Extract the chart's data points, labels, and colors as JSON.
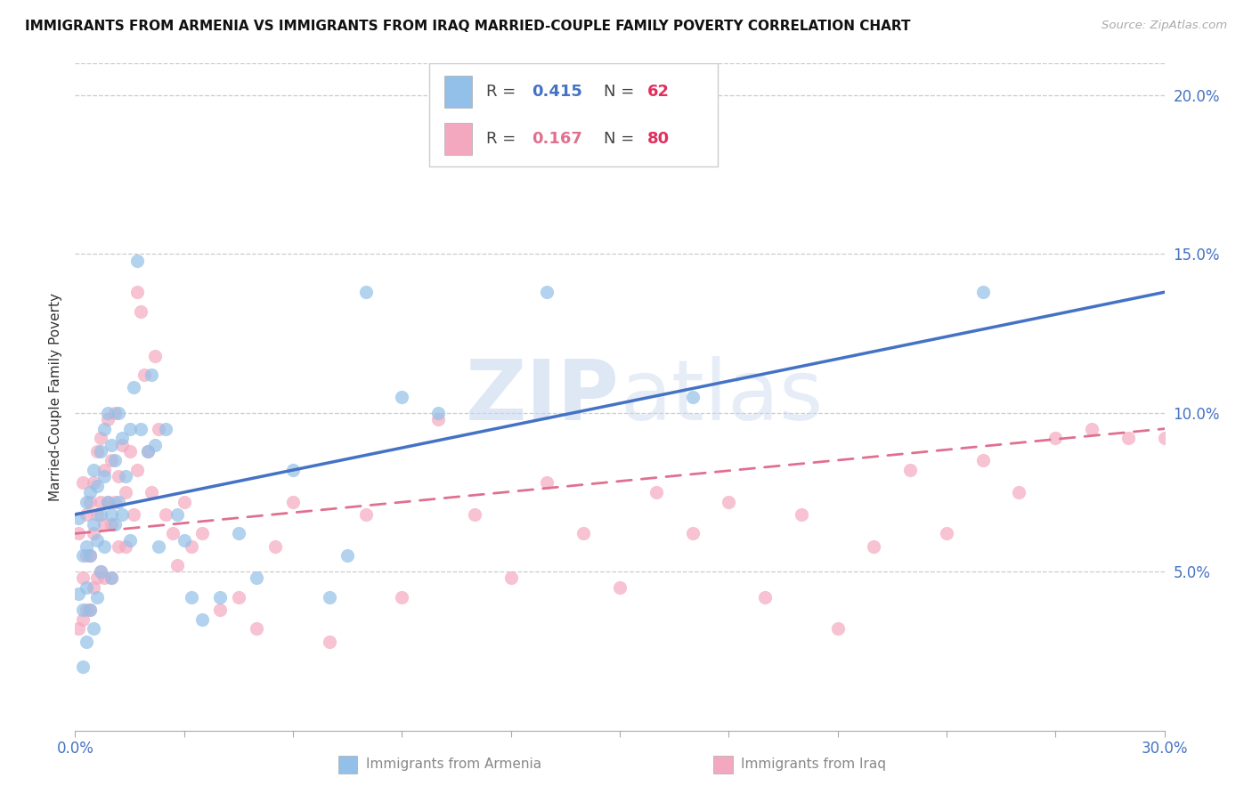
{
  "title": "IMMIGRANTS FROM ARMENIA VS IMMIGRANTS FROM IRAQ MARRIED-COUPLE FAMILY POVERTY CORRELATION CHART",
  "source": "Source: ZipAtlas.com",
  "ylabel": "Married-Couple Family Poverty",
  "xmin": 0.0,
  "xmax": 0.3,
  "ymin": 0.0,
  "ymax": 0.21,
  "yticks": [
    0.05,
    0.1,
    0.15,
    0.2
  ],
  "ytick_labels": [
    "5.0%",
    "10.0%",
    "15.0%",
    "20.0%"
  ],
  "armenia_color": "#92C0E8",
  "iraq_color": "#F4A8C0",
  "armenia_line_color": "#4472C4",
  "iraq_line_color": "#E07090",
  "armenia_R": 0.415,
  "armenia_N": 62,
  "iraq_R": 0.167,
  "iraq_N": 80,
  "legend_val_color_arm": "#4472C4",
  "legend_val_color_iraq": "#E07090",
  "legend_N_color": "#E03060",
  "watermark": "ZIPatlas",
  "armenia_scatter_x": [
    0.001,
    0.001,
    0.002,
    0.002,
    0.002,
    0.003,
    0.003,
    0.003,
    0.003,
    0.004,
    0.004,
    0.004,
    0.005,
    0.005,
    0.005,
    0.006,
    0.006,
    0.006,
    0.007,
    0.007,
    0.007,
    0.008,
    0.008,
    0.008,
    0.009,
    0.009,
    0.01,
    0.01,
    0.01,
    0.011,
    0.011,
    0.012,
    0.012,
    0.013,
    0.013,
    0.014,
    0.015,
    0.015,
    0.016,
    0.017,
    0.018,
    0.02,
    0.021,
    0.022,
    0.023,
    0.025,
    0.028,
    0.03,
    0.032,
    0.035,
    0.04,
    0.045,
    0.05,
    0.06,
    0.07,
    0.075,
    0.08,
    0.09,
    0.1,
    0.13,
    0.17,
    0.25
  ],
  "armenia_scatter_y": [
    0.067,
    0.043,
    0.055,
    0.038,
    0.02,
    0.072,
    0.058,
    0.045,
    0.028,
    0.075,
    0.055,
    0.038,
    0.082,
    0.065,
    0.032,
    0.077,
    0.06,
    0.042,
    0.088,
    0.068,
    0.05,
    0.095,
    0.08,
    0.058,
    0.1,
    0.072,
    0.09,
    0.068,
    0.048,
    0.085,
    0.065,
    0.1,
    0.072,
    0.092,
    0.068,
    0.08,
    0.095,
    0.06,
    0.108,
    0.148,
    0.095,
    0.088,
    0.112,
    0.09,
    0.058,
    0.095,
    0.068,
    0.06,
    0.042,
    0.035,
    0.042,
    0.062,
    0.048,
    0.082,
    0.042,
    0.055,
    0.138,
    0.105,
    0.1,
    0.138,
    0.105,
    0.138
  ],
  "iraq_scatter_x": [
    0.001,
    0.001,
    0.002,
    0.002,
    0.002,
    0.003,
    0.003,
    0.003,
    0.004,
    0.004,
    0.004,
    0.005,
    0.005,
    0.005,
    0.006,
    0.006,
    0.006,
    0.007,
    0.007,
    0.007,
    0.008,
    0.008,
    0.008,
    0.009,
    0.009,
    0.01,
    0.01,
    0.01,
    0.011,
    0.011,
    0.012,
    0.012,
    0.013,
    0.014,
    0.014,
    0.015,
    0.016,
    0.017,
    0.017,
    0.018,
    0.019,
    0.02,
    0.021,
    0.022,
    0.023,
    0.025,
    0.027,
    0.028,
    0.03,
    0.032,
    0.035,
    0.04,
    0.045,
    0.05,
    0.055,
    0.06,
    0.07,
    0.08,
    0.09,
    0.1,
    0.11,
    0.12,
    0.13,
    0.14,
    0.15,
    0.16,
    0.17,
    0.18,
    0.19,
    0.2,
    0.21,
    0.22,
    0.23,
    0.24,
    0.25,
    0.26,
    0.27,
    0.28,
    0.29,
    0.3
  ],
  "iraq_scatter_y": [
    0.062,
    0.032,
    0.048,
    0.078,
    0.035,
    0.055,
    0.068,
    0.038,
    0.072,
    0.055,
    0.038,
    0.078,
    0.062,
    0.045,
    0.088,
    0.068,
    0.048,
    0.092,
    0.072,
    0.05,
    0.082,
    0.065,
    0.048,
    0.098,
    0.072,
    0.085,
    0.065,
    0.048,
    0.1,
    0.072,
    0.08,
    0.058,
    0.09,
    0.075,
    0.058,
    0.088,
    0.068,
    0.138,
    0.082,
    0.132,
    0.112,
    0.088,
    0.075,
    0.118,
    0.095,
    0.068,
    0.062,
    0.052,
    0.072,
    0.058,
    0.062,
    0.038,
    0.042,
    0.032,
    0.058,
    0.072,
    0.028,
    0.068,
    0.042,
    0.098,
    0.068,
    0.048,
    0.078,
    0.062,
    0.045,
    0.075,
    0.062,
    0.072,
    0.042,
    0.068,
    0.032,
    0.058,
    0.082,
    0.062,
    0.085,
    0.075,
    0.092,
    0.095,
    0.092,
    0.092
  ],
  "arm_line_x0": 0.0,
  "arm_line_x1": 0.3,
  "arm_line_y0": 0.068,
  "arm_line_y1": 0.138,
  "iraq_line_x0": 0.0,
  "iraq_line_x1": 0.3,
  "iraq_line_y0": 0.062,
  "iraq_line_y1": 0.095
}
